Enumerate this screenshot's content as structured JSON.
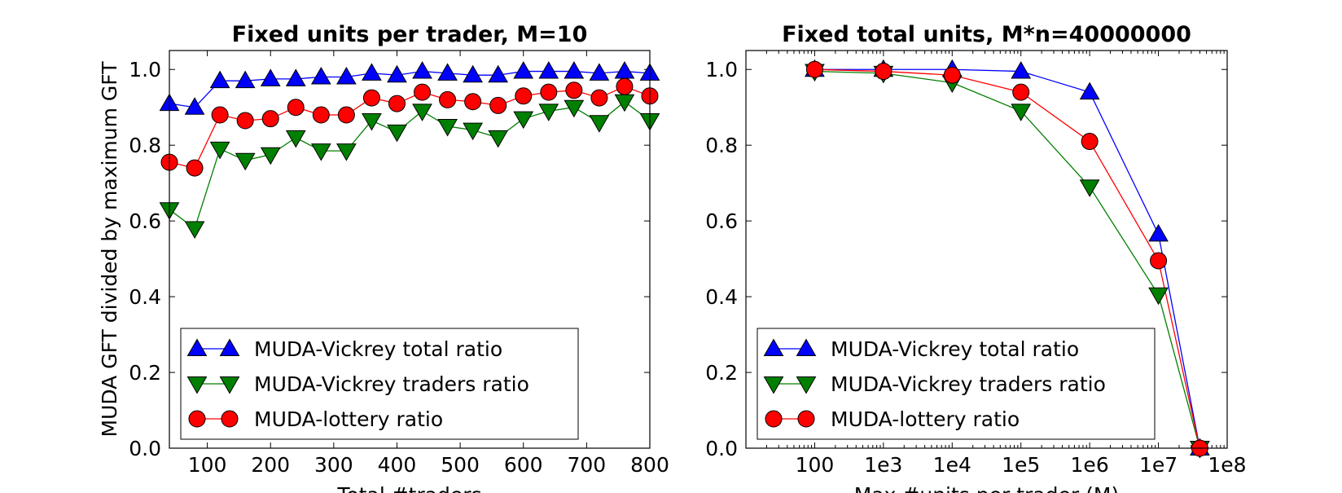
{
  "chart_data": [
    {
      "type": "line",
      "title": "Fixed units per trader, M=10",
      "xlabel": "Total #traders",
      "ylabel": "MUDA GFT divided by maximum GFT",
      "xlim": [
        40,
        800
      ],
      "ylim": [
        0.0,
        1.05
      ],
      "x_ticks": [
        100,
        200,
        300,
        400,
        500,
        600,
        700,
        800
      ],
      "x_tick_labels": [
        "100",
        "200",
        "300",
        "400",
        "500",
        "600",
        "700",
        "800"
      ],
      "y_ticks": [
        0.0,
        0.2,
        0.4,
        0.6,
        0.8,
        1.0
      ],
      "y_tick_labels": [
        "0.0",
        "0.2",
        "0.4",
        "0.6",
        "0.8",
        "1.0"
      ],
      "grid": false,
      "legend_position": "lower-left",
      "x": [
        40,
        80,
        120,
        160,
        200,
        240,
        280,
        320,
        360,
        400,
        440,
        480,
        520,
        560,
        600,
        640,
        680,
        720,
        760,
        800
      ],
      "series": [
        {
          "name": "MUDA-Vickrey total ratio",
          "marker": "triangle-up",
          "color": "#0000ff",
          "values": [
            0.91,
            0.9,
            0.97,
            0.97,
            0.975,
            0.975,
            0.98,
            0.98,
            0.99,
            0.985,
            0.995,
            0.99,
            0.985,
            0.985,
            0.995,
            0.995,
            0.995,
            0.99,
            0.995,
            0.99
          ]
        },
        {
          "name": "MUDA-Vickrey traders ratio",
          "marker": "triangle-down",
          "color": "#008000",
          "values": [
            0.63,
            0.58,
            0.79,
            0.76,
            0.775,
            0.82,
            0.785,
            0.785,
            0.865,
            0.835,
            0.89,
            0.85,
            0.84,
            0.82,
            0.87,
            0.89,
            0.9,
            0.86,
            0.915,
            0.865
          ]
        },
        {
          "name": "MUDA-lottery ratio",
          "marker": "circle",
          "color": "#ff0000",
          "values": [
            0.755,
            0.74,
            0.88,
            0.865,
            0.87,
            0.9,
            0.88,
            0.88,
            0.925,
            0.91,
            0.94,
            0.92,
            0.915,
            0.905,
            0.93,
            0.94,
            0.945,
            0.925,
            0.955,
            0.93
          ]
        }
      ]
    },
    {
      "type": "line",
      "title": "Fixed total units, M*n=40000000",
      "xlabel": "Max #units per trader (M)",
      "ylabel": "",
      "xscale": "log",
      "xlim": [
        10,
        100000000
      ],
      "ylim": [
        0.0,
        1.05
      ],
      "x_ticks": [
        100,
        1000,
        10000,
        100000,
        1000000,
        10000000,
        100000000
      ],
      "x_tick_labels": [
        "100",
        "1e3",
        "1e4",
        "1e5",
        "1e6",
        "1e7",
        "1e8"
      ],
      "y_ticks": [
        0.0,
        0.2,
        0.4,
        0.6,
        0.8,
        1.0
      ],
      "y_tick_labels": [
        "0.0",
        "0.2",
        "0.4",
        "0.6",
        "0.8",
        "1.0"
      ],
      "grid": false,
      "legend_position": "lower-left",
      "x": [
        100,
        1000,
        10000,
        100000,
        1000000,
        10000000,
        40000000
      ],
      "series": [
        {
          "name": "MUDA-Vickrey total ratio",
          "marker": "triangle-up",
          "color": "#0000ff",
          "values": [
            1.0,
            1.0,
            1.0,
            0.995,
            0.94,
            0.565,
            0.0
          ]
        },
        {
          "name": "MUDA-Vickrey traders ratio",
          "marker": "triangle-down",
          "color": "#008000",
          "values": [
            0.995,
            0.99,
            0.965,
            0.89,
            0.69,
            0.405,
            0.0
          ]
        },
        {
          "name": "MUDA-lottery ratio",
          "marker": "circle",
          "color": "#ff0000",
          "values": [
            1.0,
            0.995,
            0.985,
            0.94,
            0.81,
            0.495,
            0.0
          ]
        }
      ]
    }
  ]
}
